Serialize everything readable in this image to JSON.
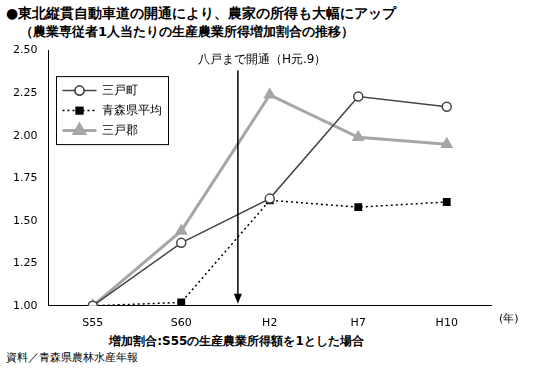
{
  "chart_data": {
    "type": "line",
    "title": "●東北縦貫自動車道の開通により、農家の所得も大幅にアップ",
    "subtitle": "（農業専従者1人当たりの生産農業所得増加割合の推移）",
    "x_label": "(年)",
    "note": "増加割合:S55の生産農業所得額を1とした場合",
    "source": "資料／青森県農林水産年報",
    "categories": [
      "S55",
      "S60",
      "H2",
      "H7",
      "H10"
    ],
    "series": [
      {
        "name": "三戸町",
        "color": "#444444",
        "marker": "circle_open",
        "line_style": "solid",
        "values": [
          1.0,
          1.37,
          1.63,
          2.23,
          2.17
        ]
      },
      {
        "name": "青森県平均",
        "color": "#000000",
        "marker": "square",
        "line_style": "dotted",
        "values": [
          1.0,
          1.02,
          1.62,
          1.58,
          1.61
        ]
      },
      {
        "name": "三戸郡",
        "color": "#a6a6a6",
        "marker": "triangle",
        "line_style": "solid",
        "values": [
          1.0,
          1.44,
          2.24,
          1.99,
          1.95
        ]
      }
    ],
    "annotations": [
      {
        "text": "八戸まで開通（H元.9）",
        "x": 1.64
      }
    ],
    "ylim": [
      1.0,
      2.5
    ],
    "yticks": [
      {
        "value": 1.0,
        "label": "1.00"
      },
      {
        "value": 1.25,
        "label": "1.25"
      },
      {
        "value": 1.5,
        "label": "1.50"
      },
      {
        "value": 1.75,
        "label": "1.75"
      },
      {
        "value": 2.0,
        "label": "2.00"
      },
      {
        "value": 2.25,
        "label": "2.25"
      },
      {
        "value": 2.5,
        "label": "2.50"
      }
    ],
    "grid": false,
    "legend": "top-left"
  }
}
